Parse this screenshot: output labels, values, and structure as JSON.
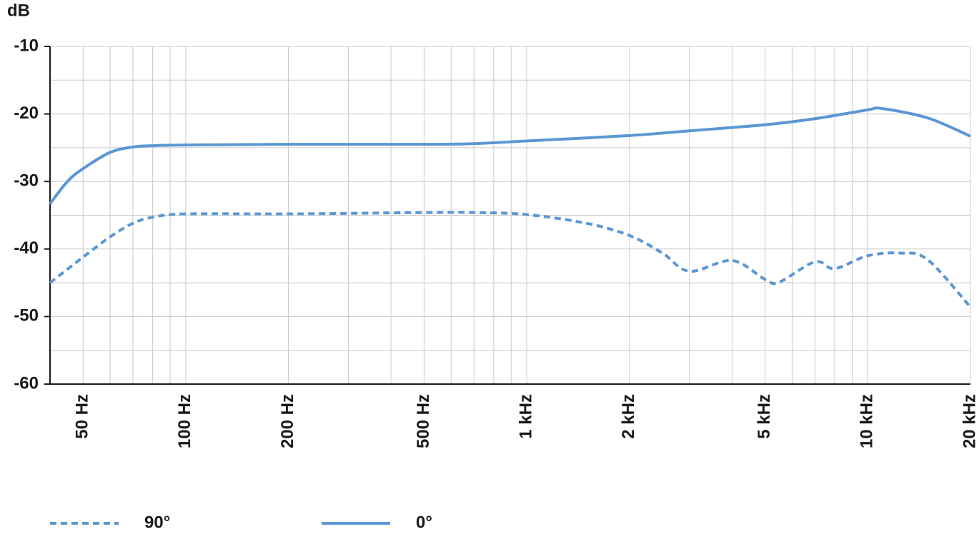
{
  "chart_data": {
    "type": "line",
    "y_label": "dB",
    "xscale": "log",
    "grid": true,
    "xlim": [
      40,
      20000
    ],
    "ylim": [
      -60,
      -10
    ],
    "xticks": [
      {
        "value": 50,
        "label": "50 Hz"
      },
      {
        "value": 100,
        "label": "100 Hz"
      },
      {
        "value": 200,
        "label": "200 Hz"
      },
      {
        "value": 500,
        "label": "500 Hz"
      },
      {
        "value": 1000,
        "label": "1 kHz"
      },
      {
        "value": 2000,
        "label": "2 kHz"
      },
      {
        "value": 5000,
        "label": "5 kHz"
      },
      {
        "value": 10000,
        "label": "10 kHz"
      },
      {
        "value": 20000,
        "label": "20 kHz"
      }
    ],
    "xminorticks": [
      60,
      70,
      80,
      90,
      300,
      400,
      600,
      700,
      800,
      900,
      3000,
      4000,
      6000,
      7000,
      8000,
      9000
    ],
    "yticks": [
      -60,
      -50,
      -40,
      -30,
      -20,
      -10
    ],
    "yminorticks": [
      -55,
      -45,
      -35,
      -25,
      -15
    ],
    "series": [
      {
        "name": "90°",
        "color": "#5b97d3",
        "dashed": true,
        "x": [
          40,
          50,
          60,
          70,
          80,
          100,
          200,
          500,
          700,
          1000,
          1500,
          2000,
          2500,
          3000,
          4000,
          5000,
          5500,
          7000,
          8000,
          10000,
          12500,
          15000,
          20000
        ],
        "values": [
          -45,
          -41.2,
          -38.2,
          -36.2,
          -35.3,
          -34.8,
          -34.8,
          -34.6,
          -34.6,
          -34.9,
          -36.2,
          -38,
          -40.6,
          -43.3,
          -41.7,
          -44.5,
          -44.9,
          -41.9,
          -42.9,
          -41,
          -40.6,
          -41.6,
          -48.6
        ]
      },
      {
        "name": "0°",
        "color": "#5b97d3",
        "dashed": false,
        "x": [
          40,
          45,
          50,
          60,
          70,
          80,
          100,
          200,
          500,
          700,
          1000,
          2000,
          3000,
          5000,
          7000,
          10000,
          11000,
          15000,
          20000
        ],
        "values": [
          -33.3,
          -30,
          -28.1,
          -25.7,
          -24.9,
          -24.7,
          -24.6,
          -24.5,
          -24.5,
          -24.4,
          -24,
          -23.2,
          -22.5,
          -21.6,
          -20.7,
          -19.4,
          -19.2,
          -20.6,
          -23.3
        ]
      }
    ],
    "legend": "bottom"
  }
}
